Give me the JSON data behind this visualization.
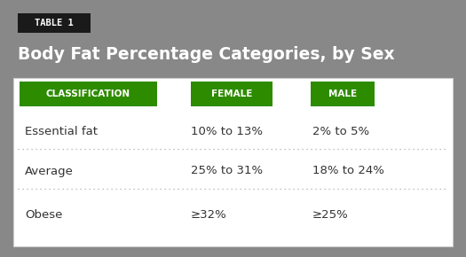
{
  "bg_color": "#888888",
  "table_bg": "#ffffff",
  "tag_bg": "#1a1a1a",
  "tag_text": "TABLE 1",
  "tag_text_color": "#ffffff",
  "title": "Body Fat Percentage Categories, by Sex",
  "title_color": "#ffffff",
  "header_bg": "#2d8b00",
  "header_text_color": "#ffffff",
  "headers": [
    "CLASSIFICATION",
    "FEMALE",
    "MALE"
  ],
  "rows": [
    [
      "Essential fat",
      "10% to 13%",
      "2% to 5%"
    ],
    [
      "Average",
      "25% to 31%",
      "18% to 24%"
    ],
    [
      "Obese",
      "≥32%",
      "≥25%"
    ]
  ],
  "row_text_color": "#333333",
  "divider_color": "#aaaaaa",
  "fig_w": 5.25,
  "fig_h": 2.9,
  "dpi": 100
}
